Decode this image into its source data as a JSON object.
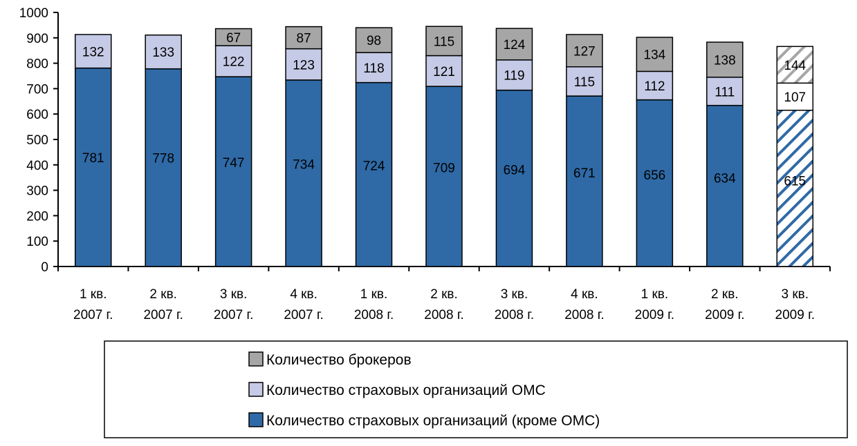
{
  "chart_data": {
    "type": "bar",
    "stacked": true,
    "categories": [
      [
        "1 кв.",
        "2007 г."
      ],
      [
        "2 кв.",
        "2007 г."
      ],
      [
        "3 кв.",
        "2007 г."
      ],
      [
        "4 кв.",
        "2007 г."
      ],
      [
        "1 кв.",
        "2008 г."
      ],
      [
        "2 кв.",
        "2008 г."
      ],
      [
        "3 кв.",
        "2008 г."
      ],
      [
        "4 кв.",
        "2008 г."
      ],
      [
        "1 кв.",
        "2009 г."
      ],
      [
        "2 кв.",
        "2009 г."
      ],
      [
        "3 кв.",
        "2009 г."
      ]
    ],
    "series": [
      {
        "name": "Количество страховых организаций (кроме ОМС)",
        "color": "#2f6aa6",
        "values": [
          781,
          778,
          747,
          734,
          724,
          709,
          694,
          671,
          656,
          634,
          615
        ]
      },
      {
        "name": "Количество страховых организаций ОМС",
        "color": "#c5cae6",
        "values": [
          132,
          133,
          122,
          123,
          118,
          121,
          119,
          115,
          112,
          111,
          107
        ]
      },
      {
        "name": "Количество брокеров",
        "color": "#a6a6a6",
        "values": [
          null,
          null,
          67,
          87,
          98,
          115,
          124,
          127,
          134,
          138,
          144
        ]
      }
    ],
    "hatched_category_index": 10,
    "yticks": [
      "0",
      "100",
      "200",
      "300",
      "400",
      "500",
      "600",
      "700",
      "800",
      "900",
      "1000"
    ],
    "ylim": [
      0,
      1000
    ],
    "grid": false,
    "legend": {
      "placement": "bottom",
      "order": [
        "Количество брокеров",
        "Количество страховых организаций ОМС",
        "Количество страховых организаций (кроме ОМС)"
      ]
    }
  }
}
